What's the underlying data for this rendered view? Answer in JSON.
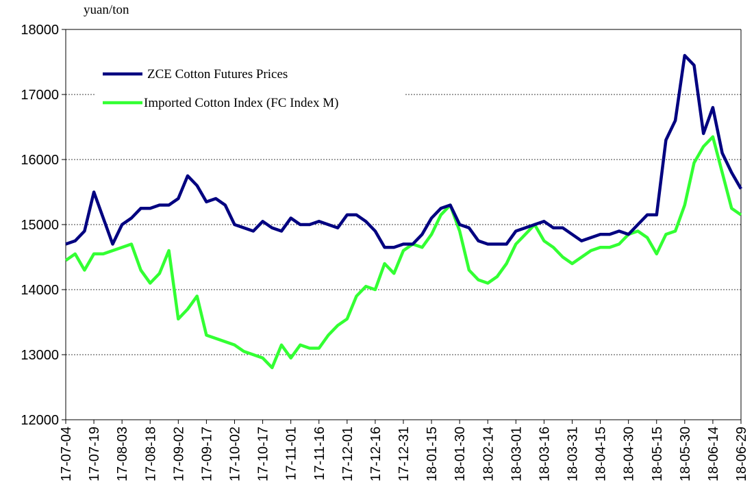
{
  "chart_data": {
    "type": "line",
    "y_label": "yuan/ton",
    "x": [
      "17-07-04",
      "17-07-09",
      "17-07-14",
      "17-07-19",
      "17-07-24",
      "17-07-29",
      "17-08-03",
      "17-08-08",
      "17-08-13",
      "17-08-18",
      "17-08-23",
      "17-08-28",
      "17-09-02",
      "17-09-07",
      "17-09-12",
      "17-09-17",
      "17-09-22",
      "17-09-27",
      "17-10-02",
      "17-10-07",
      "17-10-12",
      "17-10-17",
      "17-10-22",
      "17-10-27",
      "17-11-01",
      "17-11-06",
      "17-11-11",
      "17-11-16",
      "17-11-21",
      "17-11-26",
      "17-12-01",
      "17-12-06",
      "17-12-11",
      "17-12-16",
      "17-12-21",
      "17-12-26",
      "17-12-31",
      "18-01-05",
      "18-01-10",
      "18-01-15",
      "18-01-20",
      "18-01-25",
      "18-01-30",
      "18-02-04",
      "18-02-09",
      "18-02-14",
      "18-02-19",
      "18-02-24",
      "18-03-01",
      "18-03-06",
      "18-03-11",
      "18-03-16",
      "18-03-21",
      "18-03-26",
      "18-03-31",
      "18-04-05",
      "18-04-10",
      "18-04-15",
      "18-04-20",
      "18-04-25",
      "18-04-30",
      "18-05-05",
      "18-05-10",
      "18-05-15",
      "18-05-20",
      "18-05-25",
      "18-05-30",
      "18-06-04",
      "18-06-09",
      "18-06-14",
      "18-06-19",
      "18-06-24",
      "18-06-29"
    ],
    "series": [
      {
        "name": "ZCE Cotton Futures Prices",
        "color": "#000080",
        "values": [
          14700,
          14750,
          14900,
          15500,
          15100,
          14700,
          15000,
          15100,
          15250,
          15250,
          15300,
          15300,
          15400,
          15750,
          15600,
          15350,
          15400,
          15300,
          15000,
          14950,
          14900,
          15050,
          14950,
          14900,
          15100,
          15000,
          15000,
          15050,
          15000,
          14950,
          15150,
          15150,
          15050,
          14900,
          14650,
          14650,
          14700,
          14700,
          14850,
          15100,
          15250,
          15300,
          15000,
          14950,
          14750,
          14700,
          14700,
          14700,
          14900,
          14950,
          15000,
          15050,
          14950,
          14950,
          14850,
          14750,
          14800,
          14850,
          14850,
          14900,
          14850,
          15000,
          15150,
          15150,
          16300,
          16600,
          17600,
          17450,
          16400,
          16800,
          16100,
          15800,
          15550
        ]
      },
      {
        "name": "Imported Cotton Index (FC Index M)",
        "color": "#33ff33",
        "values": [
          14450,
          14550,
          14300,
          14550,
          14550,
          14600,
          14650,
          14700,
          14300,
          14100,
          14250,
          14600,
          13550,
          13700,
          13900,
          13300,
          13250,
          13200,
          13150,
          13050,
          13000,
          12950,
          12800,
          13150,
          12950,
          13150,
          13100,
          13100,
          13300,
          13450,
          13550,
          13900,
          14050,
          14000,
          14400,
          14250,
          14600,
          14700,
          14650,
          14850,
          15150,
          15300,
          14900,
          14300,
          14150,
          14100,
          14200,
          14400,
          14700,
          14850,
          15000,
          14750,
          14650,
          14500,
          14400,
          14500,
          14600,
          14650,
          14650,
          14700,
          14850,
          14900,
          14800,
          14550,
          14850,
          14900,
          15300,
          15950,
          16200,
          16350,
          15800,
          15250,
          15150
        ]
      }
    ],
    "xlim": [
      "17-07-04",
      "18-06-29"
    ],
    "xticks": [
      "17-07-04",
      "17-07-19",
      "17-08-03",
      "17-08-18",
      "17-09-02",
      "17-09-17",
      "17-10-02",
      "17-10-17",
      "17-11-01",
      "17-11-16",
      "17-12-01",
      "17-12-16",
      "17-12-31",
      "18-01-15",
      "18-01-30",
      "18-02-14",
      "18-03-01",
      "18-03-16",
      "18-03-31",
      "18-04-15",
      "18-04-30",
      "18-05-15",
      "18-05-30",
      "18-06-14",
      "18-06-29"
    ],
    "ylim": [
      12000,
      18000
    ],
    "yticks": [
      12000,
      13000,
      14000,
      15000,
      16000,
      17000,
      18000
    ],
    "grid": true
  }
}
